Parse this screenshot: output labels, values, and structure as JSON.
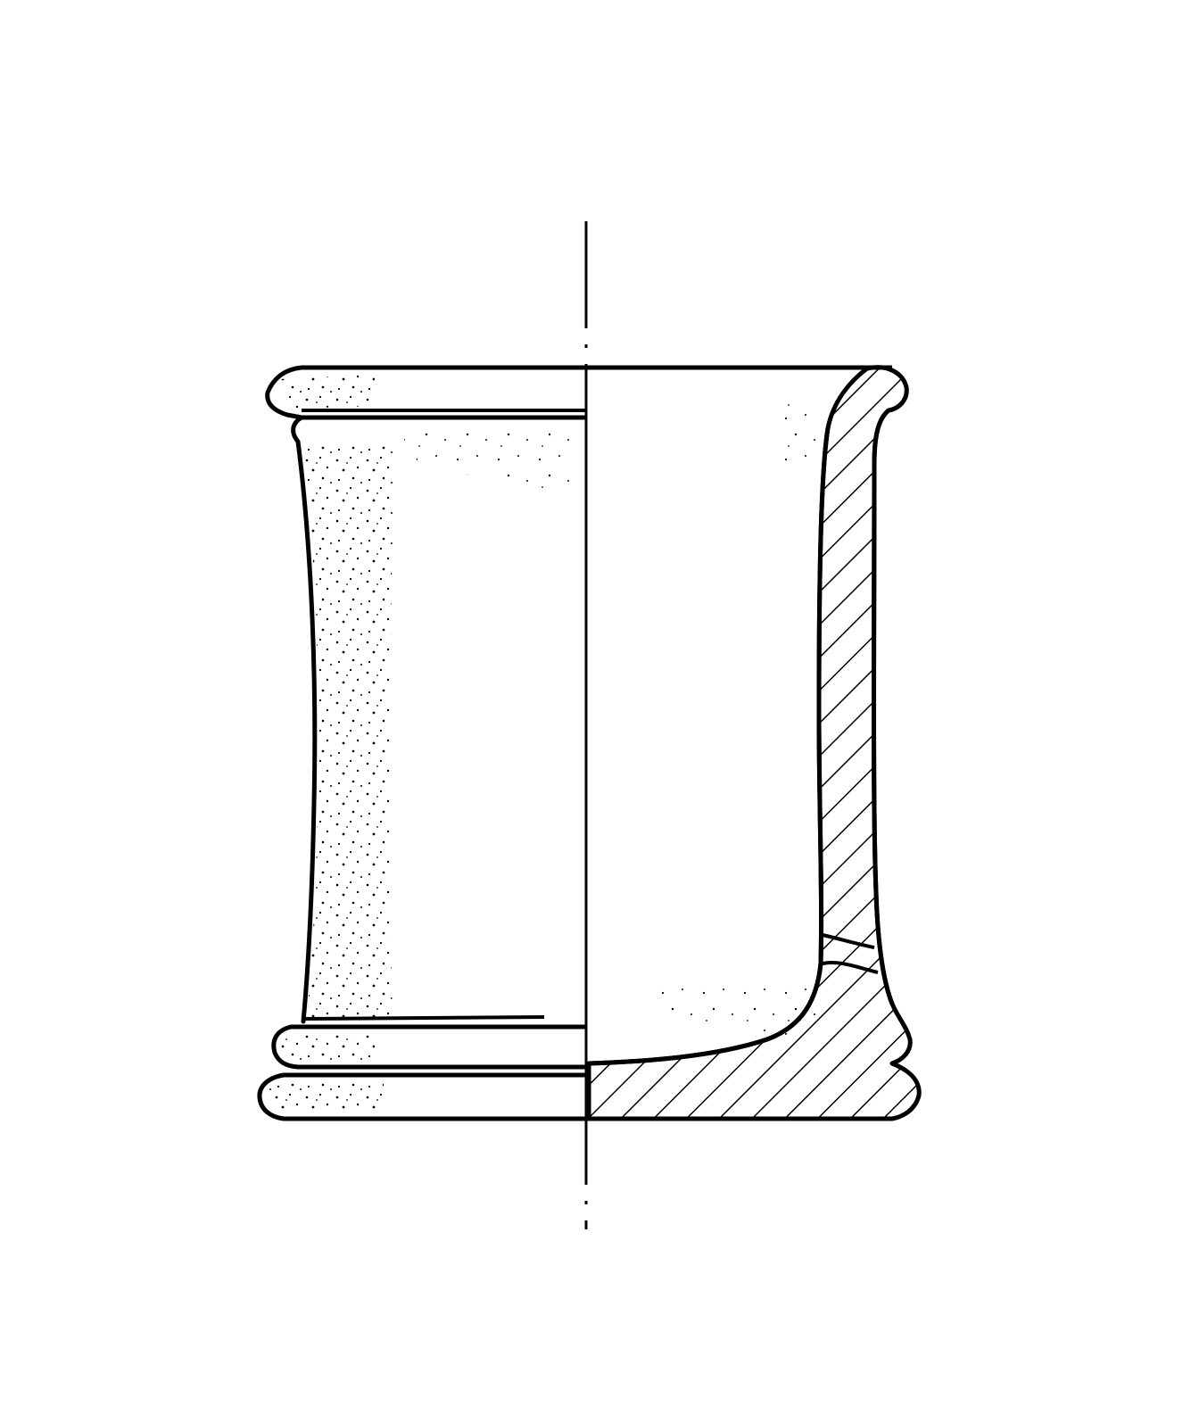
{
  "figure": {
    "subject": "pottery-vessel-profile-drawing",
    "views": [
      "exterior-view",
      "cross-section"
    ],
    "colors": {
      "ink": "#000000",
      "paper": "#ffffff"
    }
  }
}
